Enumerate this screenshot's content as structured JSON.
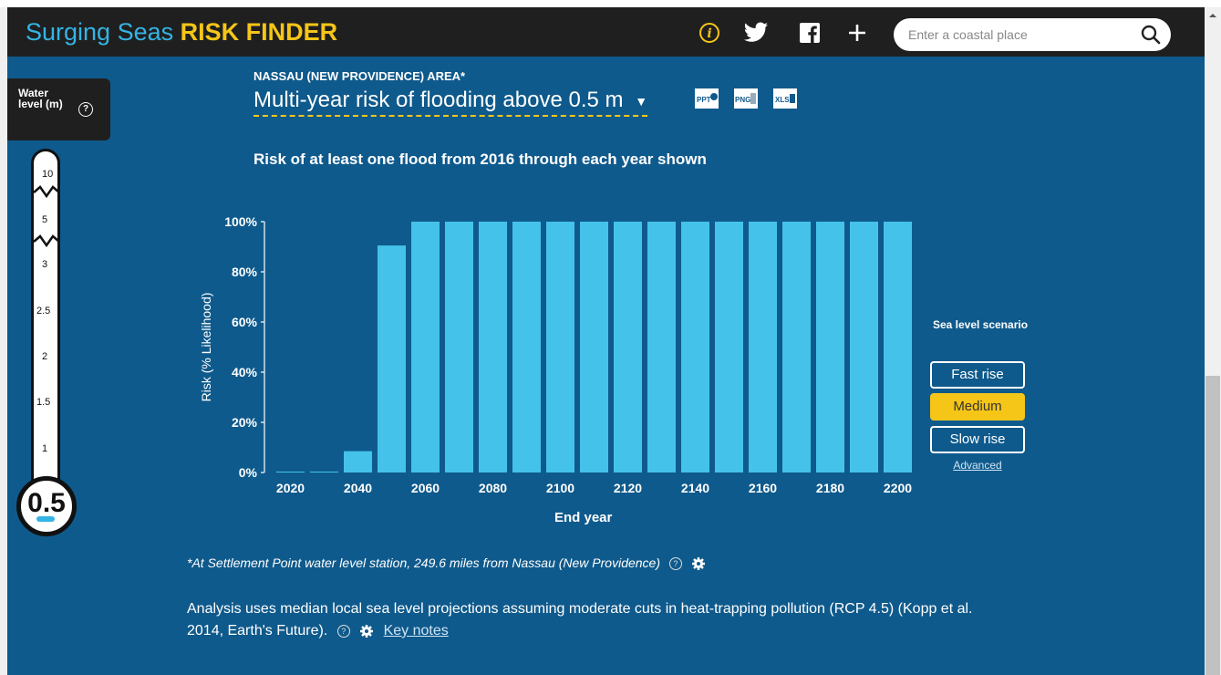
{
  "app": {
    "brand_part1": "Surging Seas",
    "brand_part2": "RISK FINDER"
  },
  "colors": {
    "brand_blue": "#34b4e4",
    "brand_yellow": "#f5c518",
    "background": "#0f5a8c",
    "bar": "#44c2ea"
  },
  "toolbar": {
    "icons": [
      "info-icon",
      "twitter-icon",
      "facebook-icon",
      "plus-icon"
    ]
  },
  "search": {
    "placeholder": "Enter a coastal place",
    "value": ""
  },
  "water_level": {
    "label": "Water level (m)",
    "value": "0.5",
    "ticks": [
      "10",
      "5",
      "3",
      "2.5",
      "2",
      "1.5",
      "1"
    ]
  },
  "header": {
    "area": "NASSAU (NEW PROVIDENCE) AREA*",
    "metric_title": "Multi-year risk of flooding above 0.5 m",
    "downloads": [
      "PPT",
      "PNG",
      "XLS"
    ]
  },
  "chart_subtitle": "Risk of at least one flood from 2016 through each year shown",
  "chart_data": {
    "type": "bar",
    "title": "Risk of at least one flood from 2016 through each year shown",
    "xlabel": "End year",
    "ylabel": "Risk (% Likelihood)",
    "ylim": [
      0,
      100
    ],
    "y_ticks": [
      "0%",
      "20%",
      "40%",
      "60%",
      "80%",
      "100%"
    ],
    "x_tick_labels": [
      "2020",
      "2040",
      "2060",
      "2080",
      "2100",
      "2120",
      "2140",
      "2160",
      "2180",
      "2200"
    ],
    "categories": [
      "2020",
      "2030",
      "2040",
      "2050",
      "2060",
      "2070",
      "2080",
      "2090",
      "2100",
      "2110",
      "2120",
      "2130",
      "2140",
      "2150",
      "2160",
      "2170",
      "2180",
      "2190",
      "2200"
    ],
    "values": [
      0,
      0,
      8.5,
      90.5,
      100,
      100,
      100,
      100,
      100,
      100,
      100,
      100,
      100,
      100,
      100,
      100,
      100,
      100,
      100
    ]
  },
  "scenario": {
    "title": "Sea level scenario",
    "buttons": [
      "Fast rise",
      "Medium",
      "Slow rise"
    ],
    "selected": "Medium",
    "advanced": "Advanced"
  },
  "footnote": "*At Settlement Point water level station, 249.6 miles from Nassau (New Providence)",
  "analysis": {
    "text": "Analysis uses median local sea level projections assuming moderate cuts in heat-trapping pollution (RCP 4.5) (Kopp et al. 2014, Earth's Future).",
    "key_notes": "Key notes"
  }
}
